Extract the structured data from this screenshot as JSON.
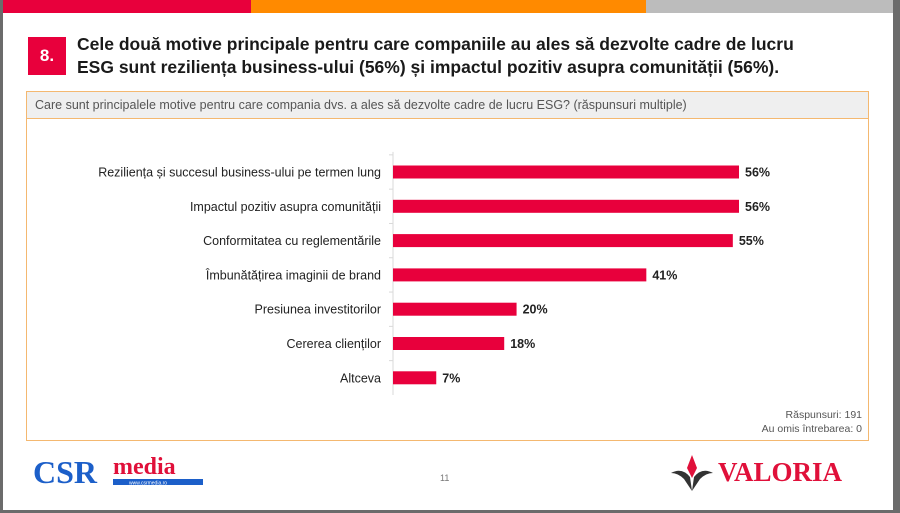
{
  "slide": {
    "number": "8.",
    "title_line1": "Cele două motive principale pentru care companiile au ales să dezvolte cadre de lucru",
    "title_line2": "ESG sunt reziliența business-ului (56%) și impactul pozitiv asupra comunității (56%).",
    "question": "Care sunt principalele motive pentru care compania dvs. a ales să dezvolte cadre de lucru ESG? (răspunsuri multiple)",
    "responses": "Răspunsuri: 191",
    "skipped": "Au omis întrebarea: 0",
    "page_number": "11",
    "colors": {
      "accent_red": "#e8003c",
      "accent_orange": "#ff8a00",
      "stripe_gray": "#bcbcbc",
      "box_border": "#f4b870"
    }
  },
  "logos": {
    "csr": {
      "text_a": "CSR",
      "text_b": "media",
      "url_text": "www.csrmedia.ro"
    },
    "valoria": {
      "text": "VALORIA"
    }
  },
  "chart_data": {
    "type": "bar",
    "orientation": "horizontal",
    "title": "Care sunt principalele motive pentru care compania dvs. a ales să dezvolte cadre de lucru ESG? (răspunsuri multiple)",
    "categories": [
      "Reziliența și succesul business-ului pe termen lung",
      "Impactul pozitiv asupra comunității",
      "Conformitatea cu reglementările",
      "Îmbunătățirea imaginii de brand",
      "Presiunea investitorilor",
      "Cererea clienților",
      "Altceva"
    ],
    "values": [
      56,
      56,
      55,
      41,
      20,
      18,
      7
    ],
    "labels": [
      "56%",
      "56%",
      "55%",
      "41%",
      "20%",
      "18%",
      "7%"
    ],
    "unit": "%",
    "xlim": [
      0,
      60
    ],
    "bar_color": "#e8003c",
    "grid": false,
    "legend": "none"
  }
}
